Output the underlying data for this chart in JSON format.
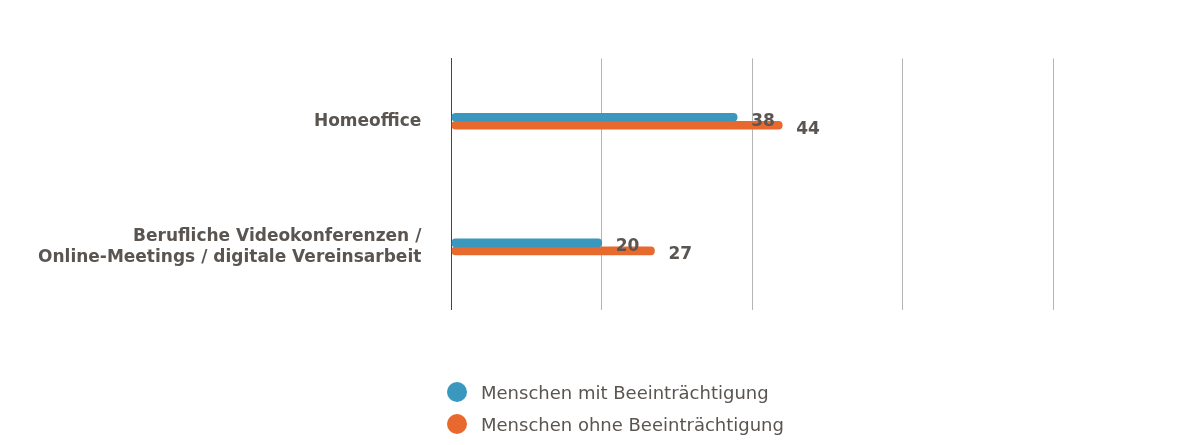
{
  "chart_data": {
    "type": "bar",
    "orientation": "horizontal",
    "categories": [
      "Homeoffice",
      "Berufliche Videokonferenzen /\nOnline-Meetings / digitale Vereinsarbeit"
    ],
    "series": [
      {
        "name": "Menschen mit Beeinträchtigung",
        "color": "#3a97bd",
        "values": [
          38,
          20
        ]
      },
      {
        "name": "Menschen ohne Beeinträchtigung",
        "color": "#e8692e",
        "values": [
          44,
          27
        ]
      }
    ],
    "xlim": [
      0,
      80
    ],
    "xticks": [
      {
        "value": 0,
        "label": null
      },
      {
        "value": 20,
        "label": null
      },
      {
        "value": 40,
        "label": null
      },
      {
        "value": 60,
        "label": null
      },
      {
        "value": 80,
        "label": null
      }
    ],
    "tick_labels": "y",
    "grid": "x",
    "legend": "bottom",
    "data_labels": true
  }
}
